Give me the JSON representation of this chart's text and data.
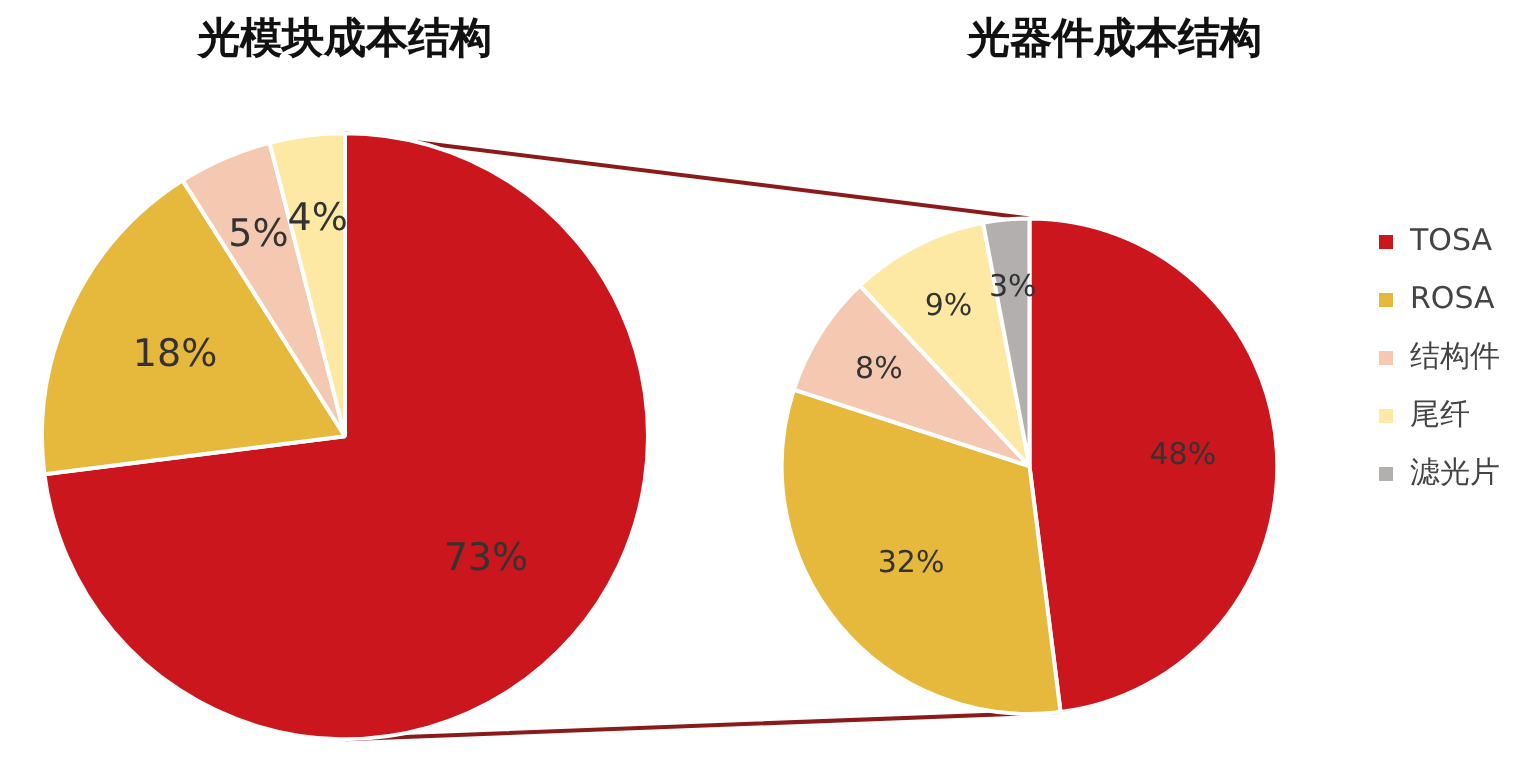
{
  "chart_data": [
    {
      "type": "pie",
      "title": "光模块成本结构",
      "categories": [
        null,
        null,
        null,
        null
      ],
      "values": [
        73,
        18,
        5,
        4
      ],
      "colors": [
        "#cb161d",
        "#e6b83c",
        "#f5c8b2",
        "#fde8a4"
      ],
      "value_labels": [
        "73%",
        "18%",
        "5%",
        "4%"
      ],
      "legend": false
    },
    {
      "type": "pie",
      "title": "光器件成本结构",
      "categories": [
        "TOSA",
        "ROSA",
        "结构件",
        "尾纤",
        "滤光片"
      ],
      "values": [
        48,
        32,
        8,
        9,
        3
      ],
      "colors": [
        "#cb161d",
        "#e6b83c",
        "#f5c8b2",
        "#fde8a4",
        "#b3afaf"
      ],
      "value_labels": [
        "48%",
        "32%",
        "8%",
        "9%",
        "3%"
      ],
      "legend": "right"
    }
  ]
}
